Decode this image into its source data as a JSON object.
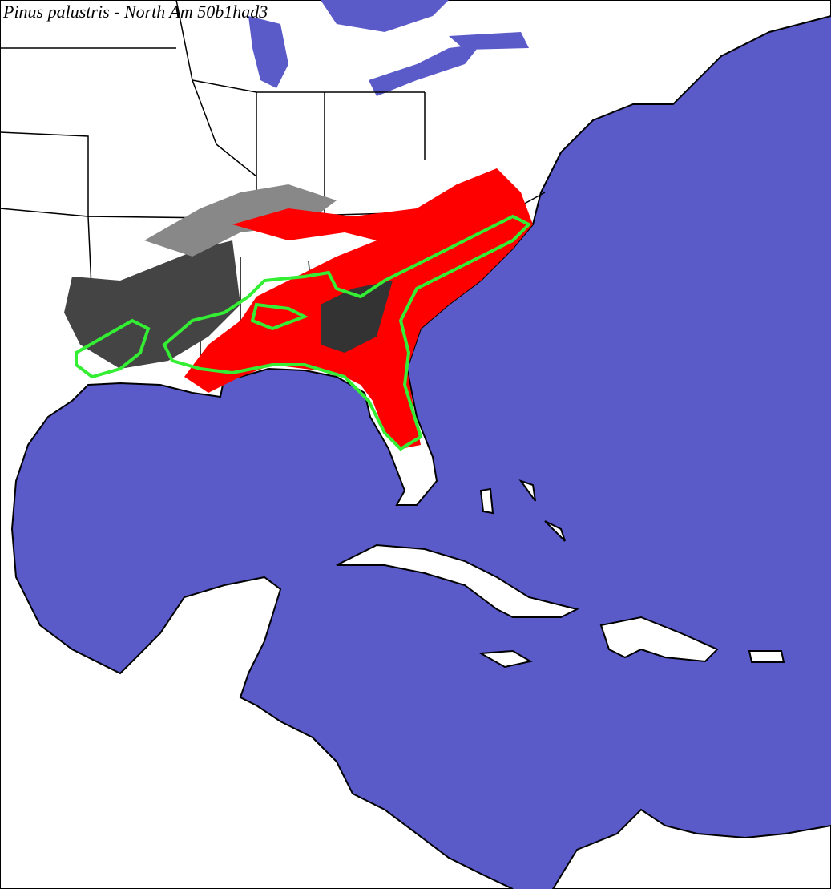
{
  "title": "Pinus palustris - North Am 50b1had3"
}
